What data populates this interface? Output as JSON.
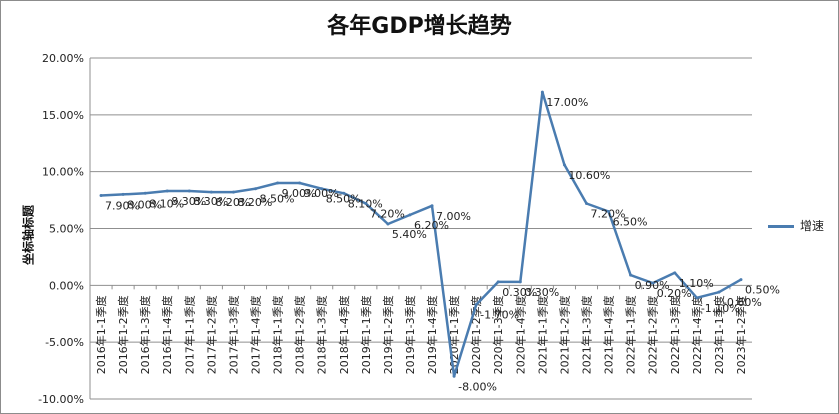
{
  "title": "各年GDP增长趋势",
  "chart_data": {
    "type": "line",
    "title": "各年GDP增长趋势",
    "xlabel": "",
    "ylabel": "坐标轴标题",
    "ylim": [
      -10,
      20
    ],
    "yticks": [
      "20.00%",
      "15.00%",
      "10.00%",
      "5.00%",
      "0.00%",
      "-5.00%",
      "-10.00%"
    ],
    "yticks_values": [
      20,
      15,
      10,
      5,
      0,
      -5,
      -10
    ],
    "legend_position": "right",
    "grid": true,
    "color": "#4a7cb0",
    "categories": [
      "2016年1-1季度",
      "2016年1-2季度",
      "2016年1-3季度",
      "2016年1-4季度",
      "2017年1-1季度",
      "2017年1-2季度",
      "2017年1-3季度",
      "2017年1-4季度",
      "2018年1-1季度",
      "2018年1-2季度",
      "2018年1-3季度",
      "2018年1-4季度",
      "2019年1-1季度",
      "2019年1-2季度",
      "2019年1-3季度",
      "2019年1-4季度",
      "2020年1-1季度",
      "2020年1-2季度",
      "2020年1-3季度",
      "2020年1-4季度",
      "2021年1-1季度",
      "2021年1-2季度",
      "2021年1-3季度",
      "2021年1-4季度",
      "2022年1-1季度",
      "2022年1-2季度",
      "2022年1-3季度",
      "2022年1-4季度",
      "2023年1-1季度",
      "2023年1-2季度"
    ],
    "series": [
      {
        "name": "增速",
        "values": [
          7.9,
          8.0,
          8.1,
          8.3,
          8.3,
          8.2,
          8.2,
          8.5,
          9.0,
          9.0,
          8.5,
          8.1,
          7.2,
          5.4,
          6.2,
          7.0,
          -8.0,
          -1.7,
          0.3,
          0.3,
          17.0,
          10.6,
          7.2,
          6.5,
          0.9,
          0.2,
          1.1,
          -1.1,
          -0.6,
          0.5
        ],
        "labels": [
          "7.90%",
          "8.00%",
          "8.10%",
          "8.30%",
          "8.30%",
          "8.20%",
          "8.20%",
          "8.50%",
          "9.00%",
          "9.00%",
          "8.50%",
          "8.10%",
          "7.20%",
          "5.40%",
          "6.20%",
          "7.00%",
          "-8.00%",
          "-1.70%",
          "0.30%",
          "0.30%",
          "17.00%",
          "10.60%",
          "7.20%",
          "6.50%",
          "0.90%",
          "0.20%",
          "1.10%",
          "-1.10%",
          "-0.60%",
          "0.50%"
        ]
      }
    ]
  }
}
